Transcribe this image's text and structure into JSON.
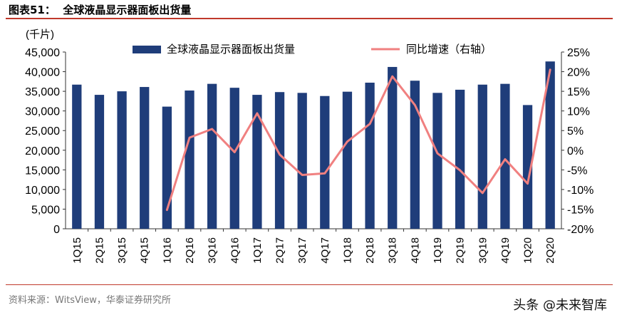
{
  "figure": {
    "title": "图表51：  全球液晶显示器面板出货量",
    "source": "资料来源：WitsView，华泰证券研究所",
    "watermark": "头条 @未来智库"
  },
  "colors": {
    "bar": "#1f3d7a",
    "line": "#f08080",
    "rule": "#c0392b"
  },
  "chart_data": {
    "type": "bar",
    "categories": [
      "1Q15",
      "2Q15",
      "3Q15",
      "4Q15",
      "1Q16",
      "2Q16",
      "3Q16",
      "4Q16",
      "1Q17",
      "2Q17",
      "3Q17",
      "4Q17",
      "1Q18",
      "2Q18",
      "3Q18",
      "4Q18",
      "1Q19",
      "2Q19",
      "3Q19",
      "4Q19",
      "1Q20",
      "2Q20"
    ],
    "series": [
      {
        "name": "全球液晶显示器面板出货量",
        "type": "bar",
        "axis": "left",
        "values": [
          36700,
          34100,
          35000,
          36100,
          31100,
          35200,
          36900,
          35900,
          34100,
          34800,
          34600,
          33800,
          34900,
          37200,
          41200,
          37700,
          34600,
          35400,
          36700,
          36900,
          31500,
          42600
        ]
      },
      {
        "name": "同比增速（右轴）",
        "type": "line",
        "axis": "right",
        "values": [
          null,
          null,
          null,
          null,
          -15.2,
          3.2,
          5.4,
          -0.5,
          9.4,
          -1.1,
          -6.3,
          -5.9,
          2.2,
          6.7,
          18.8,
          11.5,
          -0.8,
          -5.1,
          -10.9,
          -2.3,
          -8.5,
          20.5
        ]
      }
    ],
    "yleft": {
      "label": "(千片)",
      "ylim": [
        0,
        45000
      ],
      "ticks": [
        "0",
        "5,000",
        "10,000",
        "15,000",
        "20,000",
        "25,000",
        "30,000",
        "35,000",
        "40,000",
        "45,000"
      ]
    },
    "yright": {
      "ylim": [
        -20,
        25
      ],
      "ticks": [
        "-20%",
        "-15%",
        "-10%",
        "-5%",
        "0%",
        "5%",
        "10%",
        "15%",
        "20%",
        "25%"
      ]
    },
    "legend": "top",
    "grid": false
  }
}
